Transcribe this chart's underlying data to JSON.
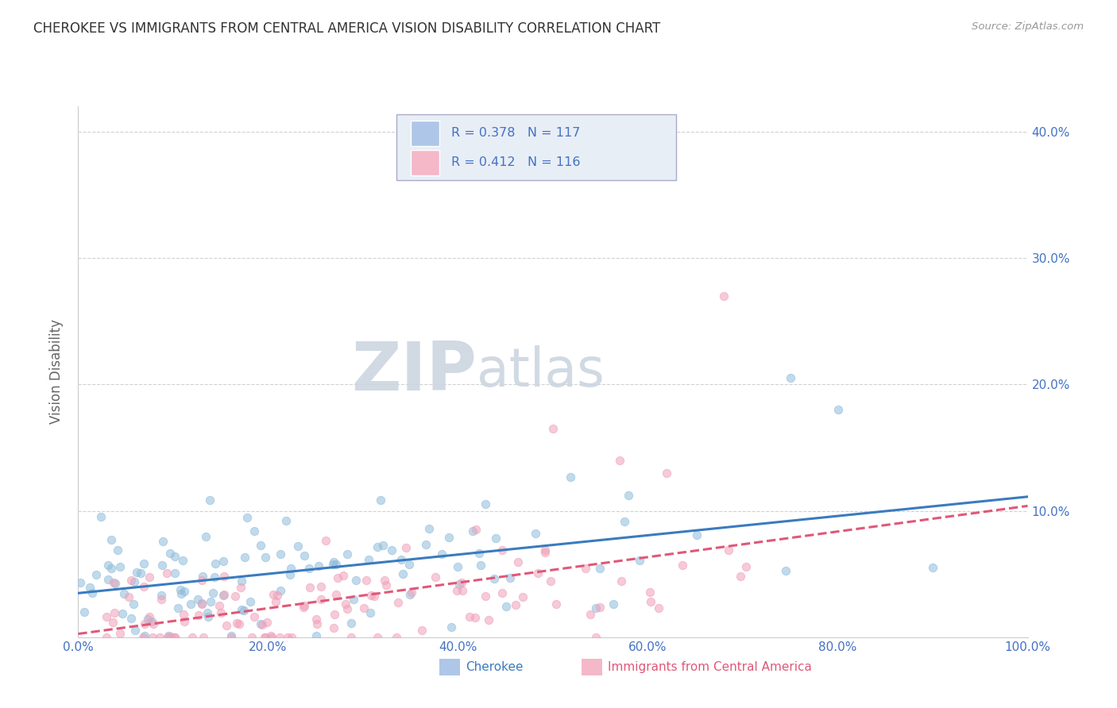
{
  "title": "CHEROKEE VS IMMIGRANTS FROM CENTRAL AMERICA VISION DISABILITY CORRELATION CHART",
  "source": "Source: ZipAtlas.com",
  "ylabel": "Vision Disability",
  "watermark_zip": "ZIP",
  "watermark_atlas": "atlas",
  "xlim": [
    0,
    100
  ],
  "ylim": [
    0,
    42
  ],
  "xtick_labels": [
    "0.0%",
    "20.0%",
    "40.0%",
    "60.0%",
    "80.0%",
    "100.0%"
  ],
  "xtick_vals": [
    0,
    20,
    40,
    60,
    80,
    100
  ],
  "ytick_labels": [
    "10.0%",
    "20.0%",
    "30.0%",
    "40.0%"
  ],
  "ytick_vals": [
    10,
    20,
    30,
    40
  ],
  "cherokee_color": "#8fbcdb",
  "immigrant_color": "#f0a0b8",
  "cherokee_line_color": "#3a7bbf",
  "immigrant_line_color": "#e05878",
  "cherokee_line_style": "-",
  "immigrant_line_style": "--",
  "background_color": "#ffffff",
  "grid_color": "#cccccc",
  "title_color": "#333333",
  "axis_color": "#4472c4",
  "watermark_color": "#ccd5e0",
  "legend_box_color": "#e8eef5",
  "cherokee_legend_color": "#aec6e8",
  "immigrant_legend_color": "#f4b8c8"
}
